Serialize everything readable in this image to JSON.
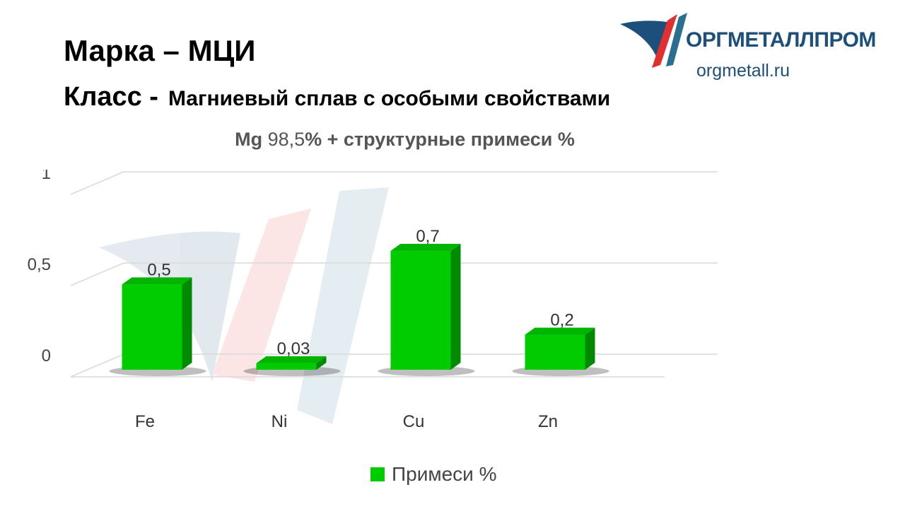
{
  "header": {
    "title": "Марка – МЦИ",
    "class_label": "Класс -",
    "class_value": "Магниевый сплав с особыми свойствами",
    "subtitle_mg": "Mg",
    "subtitle_value": " 98,5",
    "subtitle_rest": "% + структурные примеси %"
  },
  "logo": {
    "name": "ОРГМЕТАЛЛПРОМ",
    "url": "orgmetall.ru",
    "colors": {
      "blue": "#1d4f7c",
      "red": "#e03030",
      "teal": "#2a6f8f"
    }
  },
  "chart_data": {
    "type": "bar",
    "style": "3d",
    "categories": [
      "Fe",
      "Ni",
      "Cu",
      "Zn"
    ],
    "series": [
      {
        "name": "Примеси %",
        "values": [
          0.5,
          0.03,
          0.7,
          0.2
        ],
        "labels": [
          "0,5",
          "0,03",
          "0,7",
          "0,2"
        ],
        "color": "#00cc00"
      }
    ],
    "yticks": [
      "0",
      "0,5",
      "1"
    ],
    "ylim": [
      0,
      1
    ],
    "grid": true,
    "legend": "bottom"
  }
}
